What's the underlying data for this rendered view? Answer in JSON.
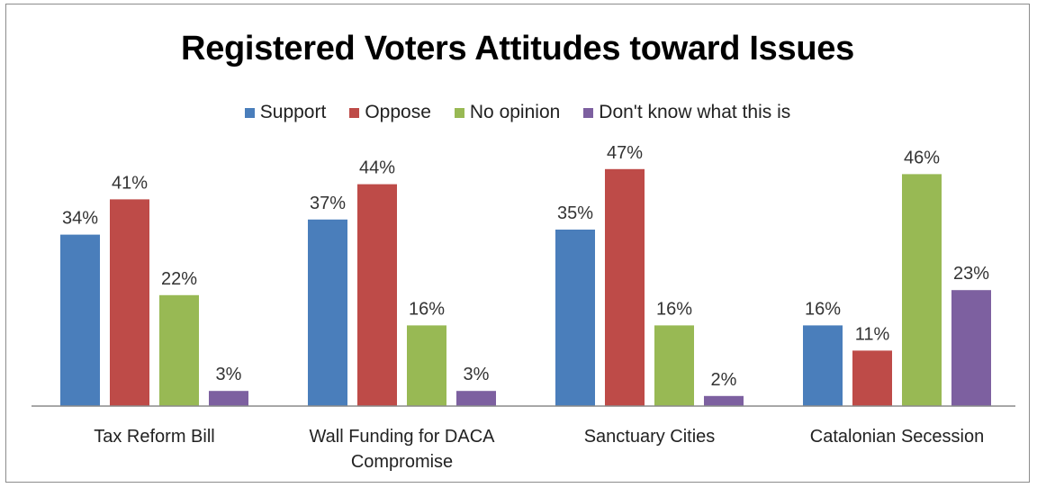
{
  "chart_data": {
    "type": "bar",
    "title": "Registered Voters Attitudes toward Issues",
    "categories": [
      [
        "Tax Reform Bill"
      ],
      [
        "Wall Funding for DACA",
        "Compromise"
      ],
      [
        "Sanctuary Cities"
      ],
      [
        "Catalonian Secession"
      ]
    ],
    "series": [
      {
        "name": "Support",
        "color": "#4a7ebb",
        "values": [
          34,
          37,
          35,
          16
        ]
      },
      {
        "name": "Oppose",
        "color": "#be4b48",
        "values": [
          41,
          44,
          47,
          11
        ]
      },
      {
        "name": "No opinion",
        "color": "#98b954",
        "values": [
          22,
          16,
          16,
          46
        ]
      },
      {
        "name": "Don't know what this is",
        "color": "#7d60a0",
        "values": [
          3,
          3,
          2,
          23
        ]
      }
    ],
    "value_suffix": "%",
    "ylim": [
      0,
      50
    ],
    "grid": false,
    "legend_position": "top"
  }
}
